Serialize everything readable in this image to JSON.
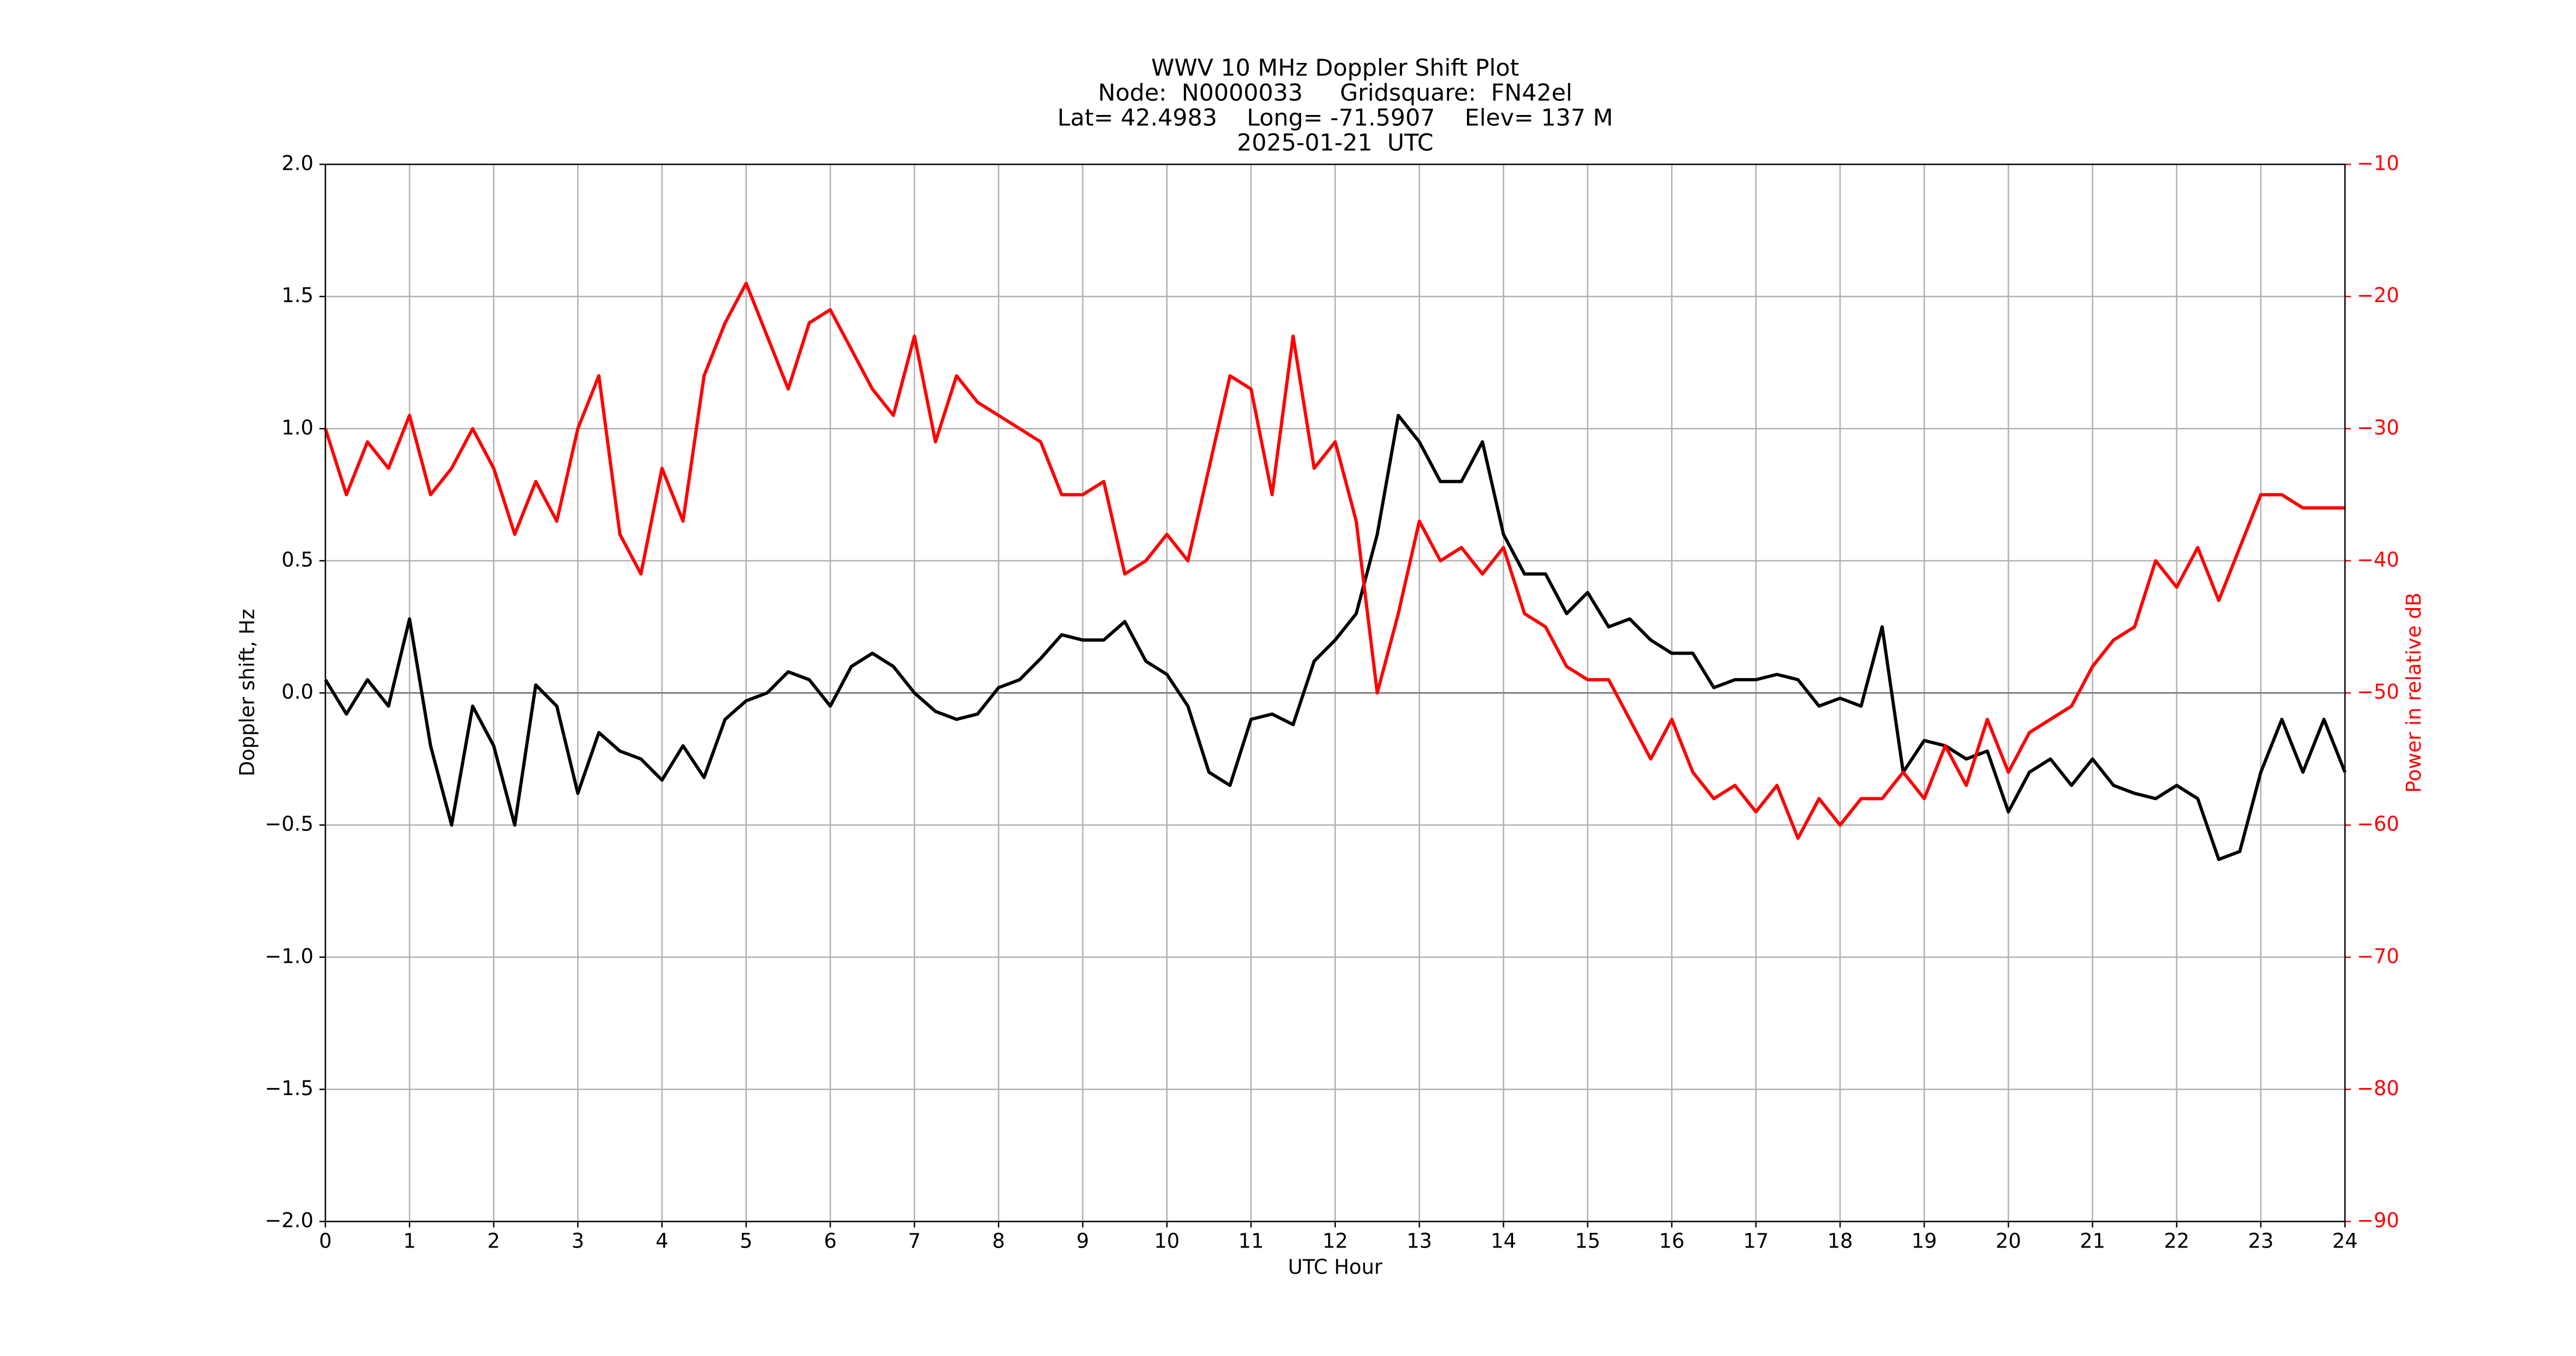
{
  "chart_data": {
    "type": "line",
    "title": "WWV 10 MHz Doppler Shift Plot",
    "subtitle": [
      "Node:  N0000033     Gridsquare:  FN42el",
      "Lat= 42.4983    Long= -71.5907    Elev= 137 M",
      "2025-01-21  UTC"
    ],
    "xlabel": "UTC Hour",
    "ylabel": "Doppler shift, Hz",
    "y2label": "Power in relative dB",
    "x": [
      0,
      0.25,
      0.5,
      0.75,
      1,
      1.25,
      1.5,
      1.75,
      2,
      2.25,
      2.5,
      2.75,
      3,
      3.25,
      3.5,
      3.75,
      4,
      4.25,
      4.5,
      4.75,
      5,
      5.25,
      5.5,
      5.75,
      6,
      6.25,
      6.5,
      6.75,
      7,
      7.25,
      7.5,
      7.75,
      8,
      8.25,
      8.5,
      8.75,
      9,
      9.25,
      9.5,
      9.75,
      10,
      10.25,
      10.5,
      10.75,
      11,
      11.25,
      11.5,
      11.75,
      12,
      12.25,
      12.5,
      12.75,
      13,
      13.25,
      13.5,
      13.75,
      14,
      14.25,
      14.5,
      14.75,
      15,
      15.25,
      15.5,
      15.75,
      16,
      16.25,
      16.5,
      16.75,
      17,
      17.25,
      17.5,
      17.75,
      18,
      18.25,
      18.5,
      18.75,
      19,
      19.25,
      19.5,
      19.75,
      20,
      20.25,
      20.5,
      20.75,
      21,
      21.25,
      21.5,
      21.75,
      22,
      22.25,
      22.5,
      22.75,
      23,
      23.25,
      23.5,
      23.75,
      24
    ],
    "series": [
      {
        "name": "Doppler shift",
        "color": "#000000",
        "values": [
          0.05,
          -0.08,
          0.05,
          -0.05,
          0.28,
          -0.2,
          -0.5,
          -0.05,
          -0.2,
          -0.5,
          0.03,
          -0.05,
          -0.38,
          -0.15,
          -0.22,
          -0.25,
          -0.33,
          -0.2,
          -0.32,
          -0.1,
          -0.03,
          0.0,
          0.08,
          0.05,
          -0.05,
          0.1,
          0.15,
          0.1,
          0.0,
          -0.07,
          -0.1,
          -0.08,
          0.02,
          0.05,
          0.13,
          0.22,
          0.2,
          0.2,
          0.27,
          0.12,
          0.07,
          -0.05,
          -0.3,
          -0.35,
          -0.1,
          -0.08,
          -0.12,
          0.12,
          0.2,
          0.3,
          0.6,
          1.05,
          0.95,
          0.8,
          0.8,
          0.95,
          0.6,
          0.45,
          0.45,
          0.3,
          0.38,
          0.25,
          0.28,
          0.2,
          0.15,
          0.15,
          0.02,
          0.05,
          0.05,
          0.07,
          0.05,
          -0.05,
          -0.02,
          -0.05,
          0.25,
          -0.3,
          -0.18,
          -0.2,
          -0.25,
          -0.22,
          -0.45,
          -0.3,
          -0.25,
          -0.35,
          -0.25,
          -0.35,
          -0.38,
          -0.4,
          -0.35,
          -0.4,
          -0.63,
          -0.6,
          -0.3,
          -0.1,
          -0.3,
          -0.1,
          -0.3
        ]
      },
      {
        "name": "Power",
        "color": "#ff0000",
        "axis": "y2",
        "values": [
          -30,
          -35,
          -31,
          -33,
          -29,
          -35,
          -33,
          -30,
          -33,
          -38,
          -34,
          -37,
          -30,
          -26,
          -38,
          -41,
          -33,
          -37,
          -26,
          -22,
          -19,
          -23,
          -27,
          -22,
          -21,
          -24,
          -27,
          -29,
          -23,
          -31,
          -26,
          -28,
          -29,
          -30,
          -31,
          -35,
          -35,
          -34,
          -41,
          -40,
          -38,
          -40,
          -33,
          -26,
          -27,
          -35,
          -23,
          -33,
          -31,
          -37,
          -50,
          -44,
          -37,
          -40,
          -39,
          -41,
          -39,
          -44,
          -45,
          -48,
          -49,
          -49,
          -52,
          -55,
          -52,
          -56,
          -58,
          -57,
          -59,
          -57,
          -61,
          -58,
          -60,
          -58,
          -58,
          -56,
          -58,
          -54,
          -57,
          -52,
          -56,
          -53,
          -52,
          -51,
          -48,
          -46,
          -45,
          -40,
          -42,
          -39,
          -43,
          -39,
          -35,
          -35,
          -36,
          -36,
          -36
        ]
      }
    ],
    "xlim": [
      0,
      24
    ],
    "xticks": [
      0,
      1,
      2,
      3,
      4,
      5,
      6,
      7,
      8,
      9,
      10,
      11,
      12,
      13,
      14,
      15,
      16,
      17,
      18,
      19,
      20,
      21,
      22,
      23,
      24
    ],
    "ylim": [
      -2.0,
      2.0
    ],
    "yticks": [
      {
        "value": -2.0,
        "label": "−2.0"
      },
      {
        "value": -1.5,
        "label": "−1.5"
      },
      {
        "value": -1.0,
        "label": "−1.0"
      },
      {
        "value": -0.5,
        "label": "−0.5"
      },
      {
        "value": 0,
        "label": "0.0"
      },
      {
        "value": 0.5,
        "label": "0.5"
      },
      {
        "value": 1.0,
        "label": "1.0"
      },
      {
        "value": 1.5,
        "label": "1.5"
      },
      {
        "value": 2.0,
        "label": "2.0"
      }
    ],
    "y2lim": [
      -90,
      -10
    ],
    "y2ticks": [
      {
        "value": -90,
        "label": "−90"
      },
      {
        "value": -80,
        "label": "−80"
      },
      {
        "value": -70,
        "label": "−70"
      },
      {
        "value": -60,
        "label": "−60"
      },
      {
        "value": -50,
        "label": "−50"
      },
      {
        "value": -40,
        "label": "−40"
      },
      {
        "value": -30,
        "label": "−30"
      },
      {
        "value": -20,
        "label": "−20"
      },
      {
        "value": -10,
        "label": "−10"
      }
    ],
    "y2color": "#ff0000",
    "hlines": [
      0
    ],
    "grid": true
  }
}
